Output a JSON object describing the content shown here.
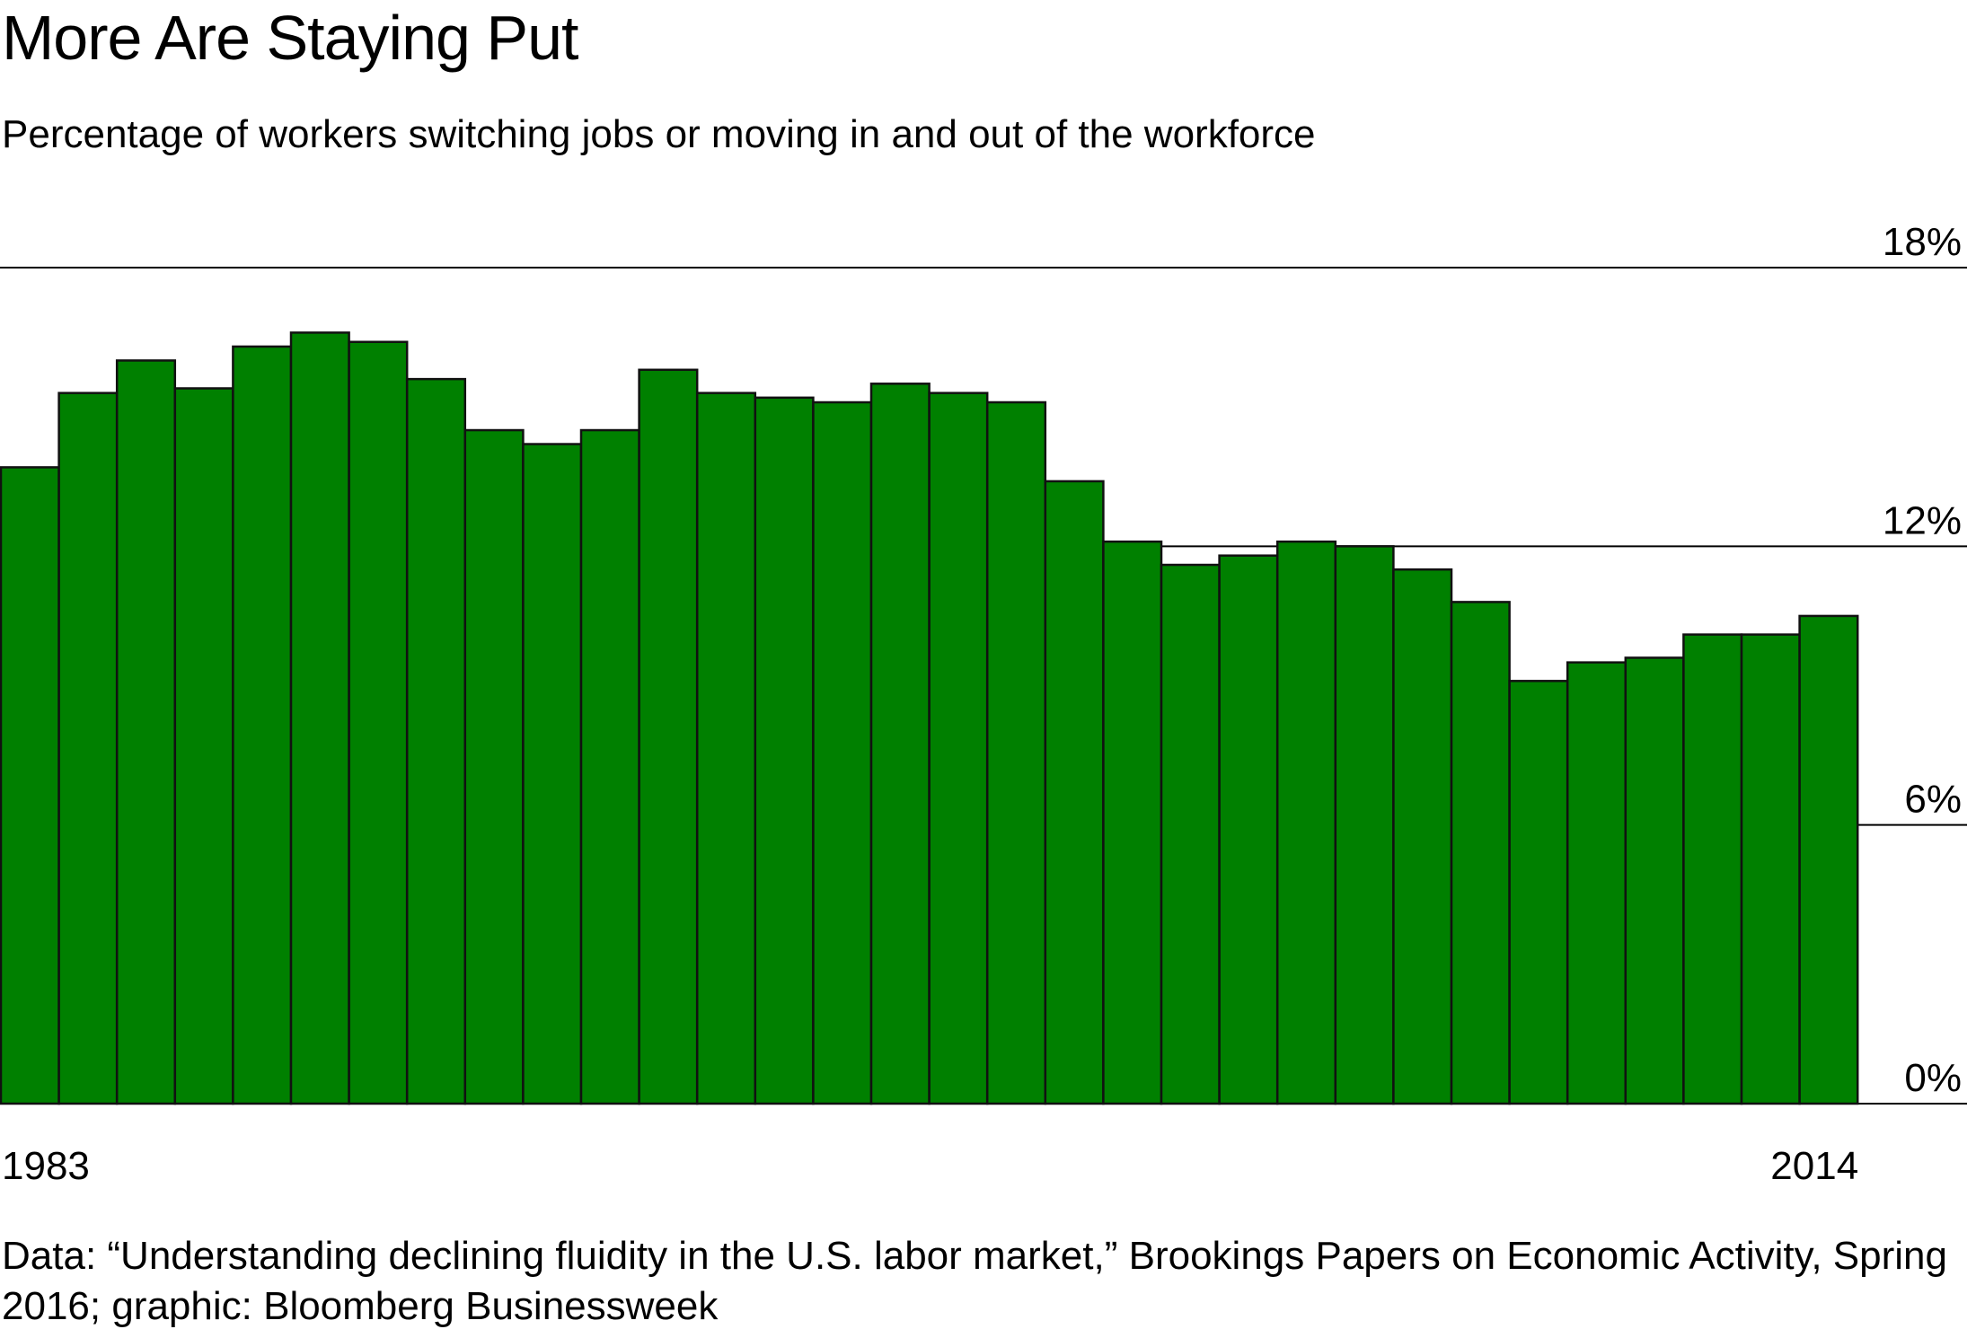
{
  "title": "More Are Staying Put",
  "subtitle": "Percentage of workers switching jobs or moving in and out of the workforce",
  "source": "Data: “Understanding declining fluidity in the U.S. labor market,” Brookings Papers on Economic Activity, Spring 2016; graphic: Bloomberg Businessweek",
  "colors": {
    "bar_fill": "#008000",
    "bar_stroke": "#111111",
    "gridline": "#000000"
  },
  "chart_data": {
    "type": "bar",
    "title": "More Are Staying Put",
    "subtitle": "Percentage of workers switching jobs or moving in and out of the workforce",
    "categories": [
      "1983",
      "1984",
      "1985",
      "1986",
      "1987",
      "1988",
      "1989",
      "1990",
      "1991",
      "1992",
      "1993",
      "1994",
      "1995",
      "1996",
      "1997",
      "1998",
      "1999",
      "2000",
      "2001",
      "2002",
      "2003",
      "2004",
      "2005",
      "2006",
      "2007",
      "2008",
      "2009",
      "2010",
      "2011",
      "2012",
      "2013",
      "2014"
    ],
    "values": [
      13.7,
      15.3,
      16.0,
      15.4,
      16.3,
      16.6,
      16.4,
      15.6,
      14.5,
      14.2,
      14.5,
      15.8,
      15.3,
      15.2,
      15.1,
      15.5,
      15.3,
      15.1,
      13.4,
      12.1,
      11.6,
      11.8,
      12.1,
      12.0,
      11.5,
      10.8,
      9.1,
      9.5,
      9.6,
      10.1,
      10.1,
      10.5
    ],
    "x_tick_labels": [
      {
        "category": "1983",
        "label": "1983"
      },
      {
        "category": "2014",
        "label": "2014"
      }
    ],
    "y_ticks": [
      {
        "value": 0,
        "label": "0%"
      },
      {
        "value": 6,
        "label": "6%"
      },
      {
        "value": 12,
        "label": "12%"
      },
      {
        "value": 18,
        "label": "18%"
      }
    ],
    "ylim": [
      0,
      18
    ],
    "xlabel": "",
    "ylabel": "",
    "grid": true,
    "legend": "none"
  }
}
